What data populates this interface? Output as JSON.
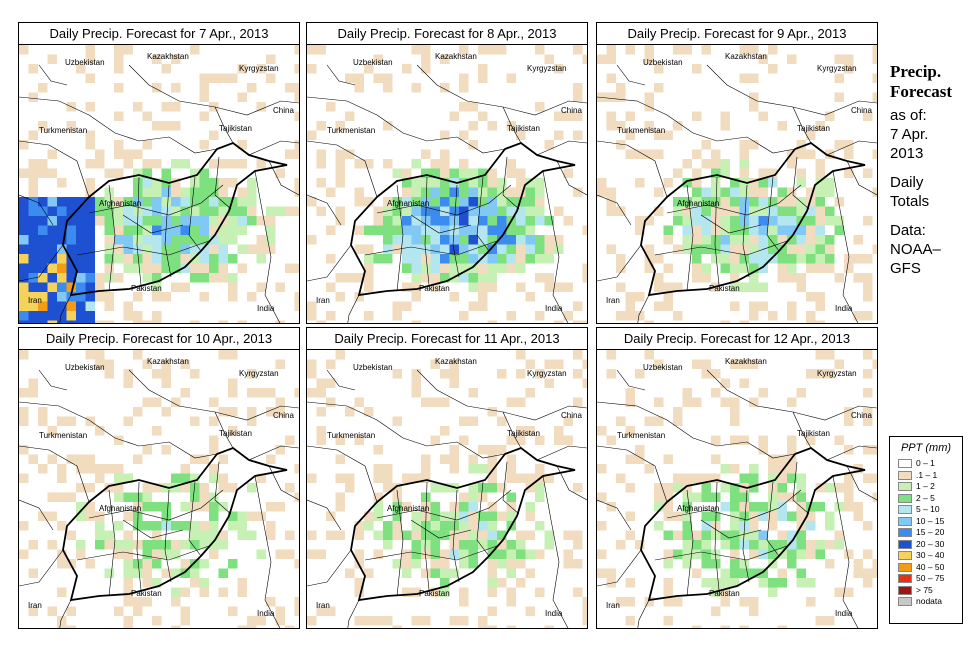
{
  "panels": [
    {
      "title": "Daily Precip. Forecast for  7 Apr., 2013",
      "seed": 11,
      "wetness": 0.42,
      "southwest_heavy": true
    },
    {
      "title": "Daily Precip. Forecast for  8 Apr., 2013",
      "seed": 23,
      "wetness": 0.55,
      "southwest_heavy": false
    },
    {
      "title": "Daily Precip. Forecast for  9 Apr., 2013",
      "seed": 37,
      "wetness": 0.38,
      "southwest_heavy": false
    },
    {
      "title": "Daily Precip. Forecast for  10 Apr., 2013",
      "seed": 41,
      "wetness": 0.22,
      "southwest_heavy": false
    },
    {
      "title": "Daily Precip. Forecast for  11 Apr., 2013",
      "seed": 53,
      "wetness": 0.26,
      "southwest_heavy": false
    },
    {
      "title": "Daily Precip. Forecast for  12 Apr., 2013",
      "seed": 67,
      "wetness": 0.3,
      "southwest_heavy": false
    }
  ],
  "country_labels": [
    "Uzbekistan",
    "Kazakhstan",
    "Kyrgyzstan",
    "China",
    "Turkmenistan",
    "Tajikistan",
    "Afghanistan",
    "Pakistan",
    "Iran",
    "India"
  ],
  "side": {
    "title_line1": "Precip.",
    "title_line2": "Forecast",
    "asof_label": "as of:",
    "asof_line1": "7 Apr.",
    "asof_line2": "2013",
    "totals_line1": "Daily",
    "totals_line2": "Totals",
    "data_line1": "Data:",
    "data_line2": "NOAA–",
    "data_line3": "GFS"
  },
  "legend": {
    "title": "PPT (mm)",
    "items": [
      {
        "label": "0 – 1",
        "color": "#ffffff"
      },
      {
        "label": ".1 – 1",
        "color": "#f2dcc0"
      },
      {
        "label": "1 – 2",
        "color": "#c6f0b4"
      },
      {
        "label": "2 – 5",
        "color": "#7fe07f"
      },
      {
        "label": "5 – 10",
        "color": "#b4e6f0"
      },
      {
        "label": "10 – 15",
        "color": "#82c8f5"
      },
      {
        "label": "15 – 20",
        "color": "#3c8cf0"
      },
      {
        "label": "20 – 30",
        "color": "#1e50d2"
      },
      {
        "label": "30 – 40",
        "color": "#f5d25a"
      },
      {
        "label": "40 – 50",
        "color": "#f59b14"
      },
      {
        "label": "50 – 75",
        "color": "#e63214"
      },
      {
        "label": "> 75",
        "color": "#a01414"
      },
      {
        "label": "nodata",
        "color": "#c8c8c8"
      }
    ]
  }
}
